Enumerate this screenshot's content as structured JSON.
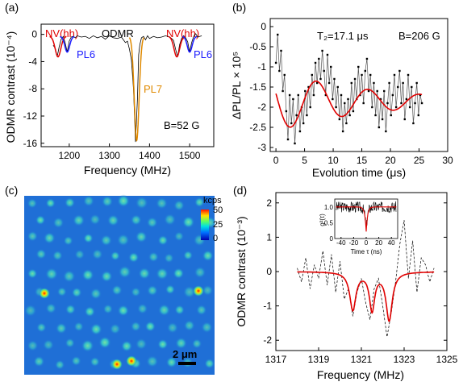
{
  "panels": {
    "a": {
      "label": "(a)",
      "chart_data": {
        "type": "line",
        "title": "ODMR",
        "xlabel": "Frequency (MHz)",
        "ylabel": "ODMR contrast (10⁻⁴)",
        "xlim": [
          1130,
          1560
        ],
        "ylim": [
          -16.5,
          1.5
        ],
        "xticks": [
          "1200",
          "1300",
          "1400",
          "1500"
        ],
        "yticks": [
          "0",
          "-4",
          "-8",
          "-12",
          "-16"
        ],
        "annotations": [
          "NV(hh)",
          "PL6",
          "PL7",
          "NV(hh)",
          "PL6",
          "B=52 G"
        ],
        "colors": {
          "nv": "#e00000",
          "pl6": "#1a1aff",
          "pl7": "#e08a00",
          "data": "#000000"
        },
        "series": [
          {
            "x": [
              1160,
              1165,
              1170,
              1175,
              1180,
              1185,
              1190,
              1195,
              1200,
              1205,
              1210,
              1215,
              1220,
              1230,
              1240,
              1250,
              1260,
              1270,
              1280,
              1290,
              1300,
              1310,
              1320,
              1330,
              1340,
              1345,
              1350,
              1355,
              1360,
              1365,
              1370,
              1373,
              1376,
              1380,
              1385,
              1390,
              1395,
              1400,
              1410,
              1420,
              1430,
              1440,
              1450,
              1455,
              1460,
              1465,
              1470,
              1475,
              1480,
              1485,
              1490,
              1495,
              1500,
              1505,
              1510,
              1515,
              1520,
              1525,
              1530
            ],
            "y": [
              -1.6,
              -2.0,
              -3.3,
              -1.8,
              -0.7,
              -0.3,
              -1.3,
              -2.6,
              -1.0,
              -0.4,
              -0.3,
              -0.5,
              -0.2,
              -0.4,
              -0.3,
              -0.6,
              -0.2,
              -0.5,
              -0.3,
              -0.7,
              -0.2,
              -0.5,
              -0.6,
              -0.4,
              -1.2,
              -1.0,
              -2.2,
              -3.8,
              -8.0,
              -15.8,
              -9.5,
              -3.0,
              -1.5,
              -0.5,
              -0.3,
              -0.8,
              -0.2,
              -0.6,
              -0.3,
              -0.5,
              -0.4,
              -0.2,
              -0.4,
              -0.6,
              -0.9,
              -2.2,
              -3.3,
              -1.5,
              -0.6,
              -0.2,
              -0.5,
              -1.1,
              -2.6,
              -1.2,
              -0.3,
              0.1,
              -0.4,
              -0.3,
              -0.2
            ]
          }
        ]
      }
    },
    "b": {
      "label": "(b)",
      "chart_data": {
        "type": "line",
        "xlabel": "Evolution time (μs)",
        "ylabel": "ΔPL/PL × 10⁵",
        "xlim": [
          -1,
          30
        ],
        "ylim": [
          -3.1,
          0.2
        ],
        "xticks": [
          "0",
          "5",
          "10",
          "15",
          "20",
          "25",
          "30"
        ],
        "yticks": [
          "0",
          "-0.5",
          "-1",
          "-1.5",
          "-2",
          "-2.5",
          "-3"
        ],
        "annotations": [
          "T₂=17.1 μs",
          "B=206 G"
        ],
        "colors": {
          "fit": "#e00000",
          "data": "#000000"
        },
        "fit": {
          "amplitude": 0.75,
          "offset": -1.85,
          "period": 9.0,
          "T2": 17.1
        },
        "series": [
          {
            "x": [
              0,
              0.3,
              0.6,
              0.9,
              1.2,
              1.5,
              1.8,
              2.1,
              2.4,
              2.7,
              3.0,
              3.3,
              3.6,
              3.9,
              4.2,
              4.5,
              4.8,
              5.1,
              5.4,
              5.7,
              6.0,
              6.3,
              6.6,
              6.9,
              7.2,
              7.5,
              7.8,
              8.1,
              8.4,
              8.7,
              9.0,
              9.3,
              9.6,
              9.9,
              10.2,
              10.5,
              10.8,
              11.1,
              11.4,
              11.7,
              12.0,
              12.3,
              12.6,
              12.9,
              13.2,
              13.5,
              13.8,
              14.1,
              14.4,
              14.7,
              15.0,
              15.3,
              15.6,
              15.9,
              16.2,
              16.5,
              16.8,
              17.1,
              17.4,
              17.7,
              18.0,
              18.3,
              18.6,
              18.9,
              19.2,
              19.5,
              19.8,
              20.1,
              20.4,
              20.7,
              21.0,
              21.3,
              21.6,
              21.9,
              22.2,
              22.5,
              22.8,
              23.1,
              23.4,
              23.7,
              24.0,
              24.3,
              24.6,
              24.9,
              25.2,
              25.5
            ],
            "y": [
              -0.9,
              -0.2,
              -1.1,
              -0.6,
              -1.6,
              -1.2,
              -2.1,
              -2.8,
              -1.7,
              -2.4,
              -1.8,
              -2.9,
              -2.2,
              -1.7,
              -2.6,
              -2.0,
              -2.4,
              -1.6,
              -2.2,
              -1.5,
              -2.0,
              -1.2,
              -1.7,
              -0.9,
              -1.4,
              -0.8,
              -1.3,
              -0.6,
              -1.1,
              -1.7,
              -0.7,
              -1.4,
              -1.0,
              -1.8,
              -1.3,
              -2.0,
              -1.5,
              -2.3,
              -1.7,
              -2.6,
              -1.9,
              -2.4,
              -1.8,
              -2.2,
              -1.4,
              -2.1,
              -1.3,
              -1.8,
              -1.0,
              -1.7,
              -1.2,
              -1.9,
              -1.1,
              -0.8,
              -1.6,
              -1.2,
              -2.0,
              -1.4,
              -2.2,
              -1.6,
              -2.5,
              -1.8,
              -2.3,
              -1.6,
              -2.6,
              -1.9,
              -1.4,
              -2.2,
              -1.7,
              -1.2,
              -2.0,
              -1.5,
              -1.1,
              -1.9,
              -1.4,
              -2.3,
              -1.8,
              -1.2,
              -2.0,
              -1.5,
              -2.4,
              -1.9,
              -1.4,
              -2.2,
              -1.7,
              -1.9
            ]
          }
        ]
      }
    },
    "c": {
      "label": "(c)",
      "colorbar_unit": "kcps",
      "colorbar_ticks": [
        "50",
        "25",
        "0"
      ],
      "scalebar": "2 μm",
      "colors": {
        "background": "#1f6fd6",
        "spot": "#30c8c8",
        "bright": "#ff2a00"
      }
    },
    "d": {
      "label": "(d)",
      "chart_data": {
        "type": "line",
        "xlabel": "Frequency (MHz)",
        "ylabel": "ODMR contrast (10⁻³)",
        "xlim": [
          1317,
          1325
        ],
        "ylim": [
          -2.3,
          2.3
        ],
        "xticks": [
          "1317",
          "1319",
          "1321",
          "1323",
          "1325"
        ],
        "yticks": [
          "2",
          "1",
          "0",
          "-1",
          "-2"
        ],
        "colors": {
          "fit": "#e00000",
          "data": "#000000"
        },
        "fit_dips": [
          {
            "x0": 1320.6,
            "depth": 1.1,
            "w": 0.35
          },
          {
            "x0": 1321.5,
            "depth": 1.1,
            "w": 0.3
          },
          {
            "x0": 1322.3,
            "depth": 1.4,
            "w": 0.35
          }
        ],
        "series": [
          {
            "x": [
              1318,
              1318.2,
              1318.4,
              1318.6,
              1318.8,
              1319,
              1319.2,
              1319.4,
              1319.6,
              1319.8,
              1320,
              1320.2,
              1320.4,
              1320.6,
              1320.8,
              1321,
              1321.2,
              1321.4,
              1321.6,
              1321.8,
              1322,
              1322.2,
              1322.4,
              1322.6,
              1322.8,
              1323,
              1323.2,
              1323.4,
              1323.6,
              1323.8,
              1324,
              1324.2,
              1324.4
            ],
            "y": [
              0.1,
              -0.3,
              0.4,
              -0.5,
              0.2,
              -0.2,
              0.6,
              -0.4,
              0.5,
              -0.6,
              0.3,
              -0.8,
              -0.5,
              -1.3,
              -0.6,
              -0.2,
              -0.9,
              -1.4,
              -0.5,
              -0.2,
              -1.0,
              -1.9,
              -1.2,
              -0.3,
              0.8,
              1.5,
              -0.2,
              0.9,
              -0.6,
              0.4,
              0.2,
              -0.3,
              0.1
            ]
          }
        ],
        "inset": {
          "ylabel": "g²(τ)",
          "xlabel": "Time τ (ns)",
          "xticks": [
            "-40",
            "-20",
            "0",
            "20",
            "40"
          ],
          "yticks": [
            "1.0",
            "0.5",
            "0"
          ]
        }
      }
    }
  }
}
